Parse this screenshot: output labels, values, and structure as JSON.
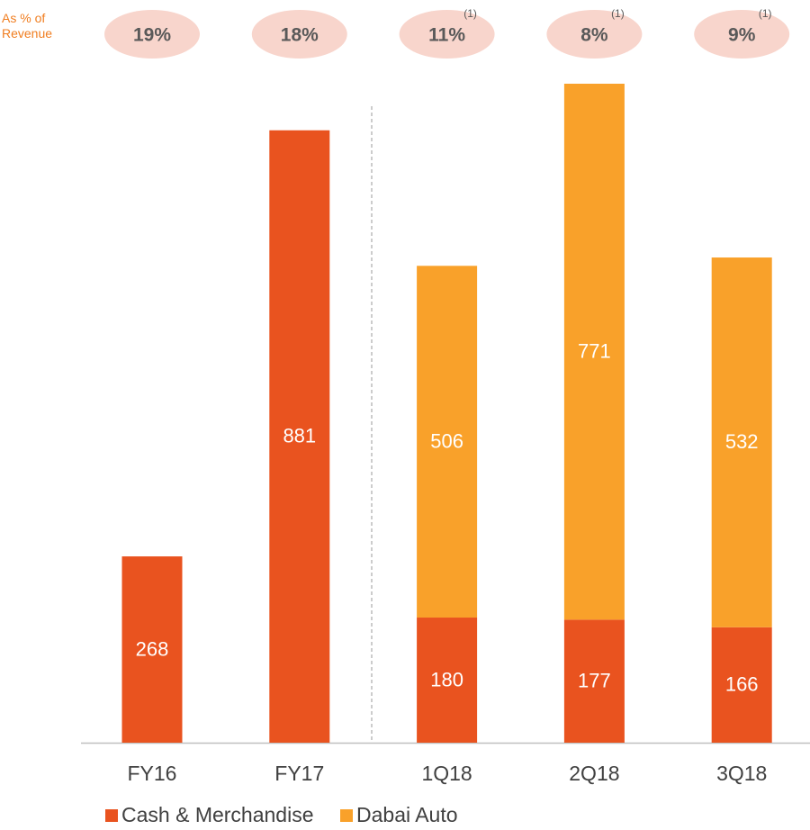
{
  "chart_data": {
    "type": "bar",
    "stacked": true,
    "categories": [
      "FY16",
      "FY17",
      "1Q18",
      "2Q18",
      "3Q18"
    ],
    "series": [
      {
        "name": "Cash & Merchandise",
        "color": "#e9531f",
        "values": [
          268,
          881,
          180,
          177,
          166
        ]
      },
      {
        "name": "Dabai Auto",
        "color": "#f9a12a",
        "values": [
          null,
          null,
          506,
          771,
          532
        ]
      }
    ],
    "revenue_share": {
      "label": "As % of Revenue",
      "values": [
        19,
        18,
        11,
        8,
        9
      ],
      "value_labels": [
        "19%",
        "18%",
        "11%",
        "8%",
        "9%"
      ],
      "footnotes": [
        null,
        null,
        "(1)",
        "(1)",
        "(1)"
      ],
      "color": "#f8d5cc"
    },
    "legend": "bottom-left"
  }
}
